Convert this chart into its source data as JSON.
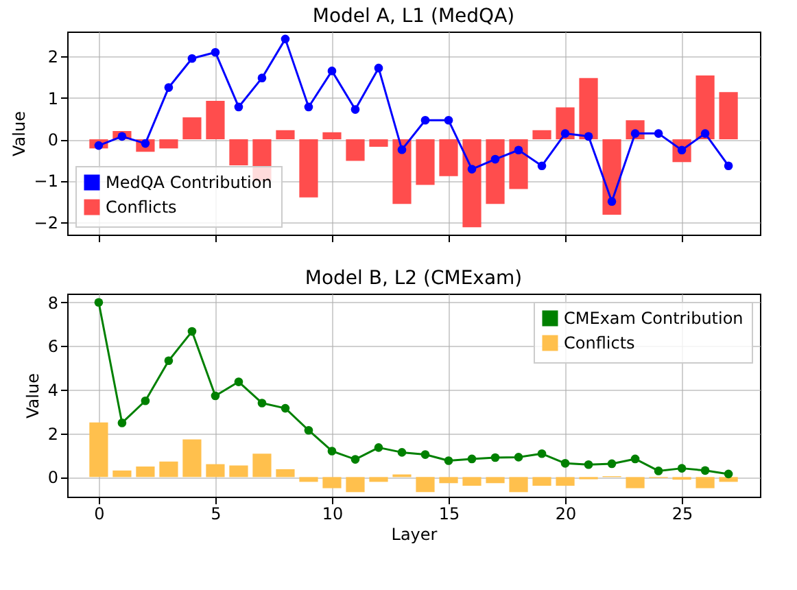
{
  "chart_data": [
    {
      "type": "bar",
      "title": "Model A, L1 (MedQA)",
      "ylabel": "Value",
      "x": [
        0,
        1,
        2,
        3,
        4,
        5,
        6,
        7,
        8,
        9,
        10,
        11,
        12,
        13,
        14,
        15,
        16,
        17,
        18,
        19,
        20,
        21,
        22,
        23,
        24,
        25,
        26,
        27
      ],
      "xlim": [
        -1.35,
        28.35
      ],
      "xticks": [
        0,
        5,
        10,
        15,
        20,
        25
      ],
      "ylim": [
        -2.3,
        2.6
      ],
      "yticks": [
        -2,
        -1,
        0,
        1,
        2
      ],
      "grid": true,
      "legend": "bottom left",
      "tick_labels": "y",
      "marker": "circle",
      "series": [
        {
          "name": "MedQA Contribution",
          "type": "line",
          "color": "#0000ff",
          "values": [
            -0.15,
            0.07,
            -0.1,
            1.25,
            1.95,
            2.1,
            0.78,
            1.48,
            2.42,
            0.78,
            1.65,
            0.72,
            1.72,
            -0.25,
            0.46,
            0.46,
            -0.72,
            -0.48,
            -0.26,
            -0.64,
            0.14,
            0.07,
            -1.5,
            0.14,
            0.14,
            -0.26,
            0.14,
            -0.64
          ]
        },
        {
          "name": "Conflicts",
          "color": "#ff4d4d",
          "values": [
            -0.22,
            0.2,
            -0.3,
            -0.22,
            0.53,
            0.93,
            -0.63,
            -1.0,
            0.22,
            -1.4,
            0.17,
            -0.52,
            -0.18,
            -1.56,
            -1.1,
            -0.89,
            -2.12,
            -1.56,
            -1.2,
            0.22,
            0.77,
            1.48,
            -1.82,
            0.46,
            0,
            -0.55,
            1.54,
            1.14
          ]
        }
      ]
    },
    {
      "type": "bar",
      "title": "Model B, L2 (CMExam)",
      "xlabel": "Layer",
      "ylabel": "Value",
      "x": [
        0,
        1,
        2,
        3,
        4,
        5,
        6,
        7,
        8,
        9,
        10,
        11,
        12,
        13,
        14,
        15,
        16,
        17,
        18,
        19,
        20,
        21,
        22,
        23,
        24,
        25,
        26,
        27
      ],
      "xlim": [
        -1.35,
        28.35
      ],
      "xticks": [
        0,
        5,
        10,
        15,
        20,
        25
      ],
      "ylim": [
        -0.9,
        8.4
      ],
      "yticks": [
        0,
        2,
        4,
        6,
        8
      ],
      "grid": true,
      "legend": "top right",
      "marker": "circle",
      "series": [
        {
          "name": "CMExam Contribution",
          "type": "line",
          "color": "#008000",
          "values": [
            8.0,
            2.48,
            3.49,
            5.33,
            6.67,
            3.72,
            4.36,
            3.39,
            3.15,
            2.14,
            1.19,
            0.81,
            1.35,
            1.13,
            1.03,
            0.75,
            0.83,
            0.89,
            0.91,
            1.07,
            0.63,
            0.57,
            0.61,
            0.83,
            0.28,
            0.4,
            0.3,
            0.14
          ]
        },
        {
          "name": "Conflicts",
          "color": "#ffc04d",
          "values": [
            2.5,
            0.3,
            0.48,
            0.71,
            1.72,
            0.59,
            0.53,
            1.07,
            0.36,
            -0.22,
            -0.51,
            -0.69,
            -0.22,
            0.12,
            -0.69,
            -0.28,
            -0.4,
            -0.28,
            -0.69,
            -0.4,
            -0.4,
            -0.1,
            0.04,
            -0.51,
            -0.04,
            -0.12,
            -0.51,
            -0.22
          ]
        }
      ]
    }
  ]
}
